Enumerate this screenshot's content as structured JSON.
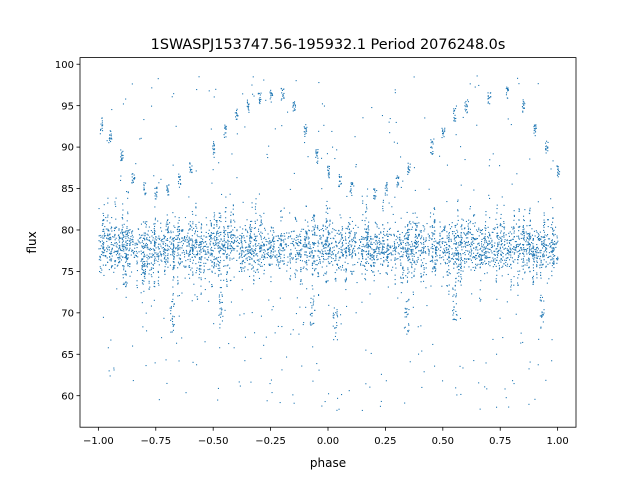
{
  "chart_data": {
    "type": "scatter",
    "title": "1SWASPJ153747.56-195932.1 Period 2076248.0s",
    "xlabel": "phase",
    "ylabel": "flux",
    "xlim": [
      -1.08,
      1.08
    ],
    "ylim": [
      56.2,
      100.8
    ],
    "xticks": [
      -1.0,
      -0.75,
      -0.5,
      -0.25,
      0.0,
      0.25,
      0.5,
      0.75,
      1.0
    ],
    "xtick_labels": [
      "−1.00",
      "−0.75",
      "−0.50",
      "−0.25",
      "0.00",
      "0.25",
      "0.50",
      "0.75",
      "1.00"
    ],
    "yticks": [
      60,
      65,
      70,
      75,
      80,
      85,
      90,
      95,
      100
    ],
    "ytick_labels": [
      "60",
      "65",
      "70",
      "75",
      "80",
      "85",
      "90",
      "95",
      "100"
    ],
    "grid": false,
    "legend": "none",
    "point_color": "#1f77b4",
    "band": {
      "phase_range": [
        -1.0,
        1.0
      ],
      "flux_center": 78,
      "flux_core_range": [
        72,
        84
      ],
      "flux_outlier_range": [
        58,
        99
      ]
    },
    "upper_arc": [
      {
        "x": -0.99,
        "y": 92.8
      },
      {
        "x": -0.95,
        "y": 91.5
      },
      {
        "x": -0.9,
        "y": 89.0
      },
      {
        "x": -0.85,
        "y": 86.5
      },
      {
        "x": -0.8,
        "y": 85.0
      },
      {
        "x": -0.75,
        "y": 84.5
      },
      {
        "x": -0.7,
        "y": 85.0
      },
      {
        "x": -0.65,
        "y": 86.0
      },
      {
        "x": -0.6,
        "y": 87.5
      },
      {
        "x": -0.5,
        "y": 90.0
      },
      {
        "x": -0.45,
        "y": 92.0
      },
      {
        "x": -0.4,
        "y": 94.0
      },
      {
        "x": -0.35,
        "y": 95.0
      },
      {
        "x": -0.3,
        "y": 95.8
      },
      {
        "x": -0.25,
        "y": 96.2
      },
      {
        "x": -0.2,
        "y": 96.5
      },
      {
        "x": -0.15,
        "y": 95.0
      },
      {
        "x": -0.1,
        "y": 92.0
      },
      {
        "x": -0.05,
        "y": 89.0
      },
      {
        "x": 0.0,
        "y": 87.0
      },
      {
        "x": 0.05,
        "y": 86.0
      },
      {
        "x": 0.1,
        "y": 85.0
      },
      {
        "x": 0.2,
        "y": 84.5
      },
      {
        "x": 0.25,
        "y": 85.0
      },
      {
        "x": 0.3,
        "y": 86.0
      },
      {
        "x": 0.35,
        "y": 87.5
      },
      {
        "x": 0.45,
        "y": 90.0
      },
      {
        "x": 0.5,
        "y": 92.0
      },
      {
        "x": 0.55,
        "y": 94.0
      },
      {
        "x": 0.6,
        "y": 95.0
      },
      {
        "x": 0.7,
        "y": 96.0
      },
      {
        "x": 0.78,
        "y": 96.5
      },
      {
        "x": 0.85,
        "y": 95.0
      },
      {
        "x": 0.9,
        "y": 92.0
      },
      {
        "x": 0.95,
        "y": 90.0
      },
      {
        "x": 1.0,
        "y": 87.0
      }
    ],
    "dips": [
      {
        "x": -0.68,
        "y": 68.5
      },
      {
        "x": -0.47,
        "y": 70.0
      },
      {
        "x": -0.07,
        "y": 69.0
      },
      {
        "x": 0.03,
        "y": 67.5
      },
      {
        "x": 0.34,
        "y": 68.5
      },
      {
        "x": 0.55,
        "y": 70.0
      },
      {
        "x": 0.93,
        "y": 69.0
      }
    ]
  }
}
